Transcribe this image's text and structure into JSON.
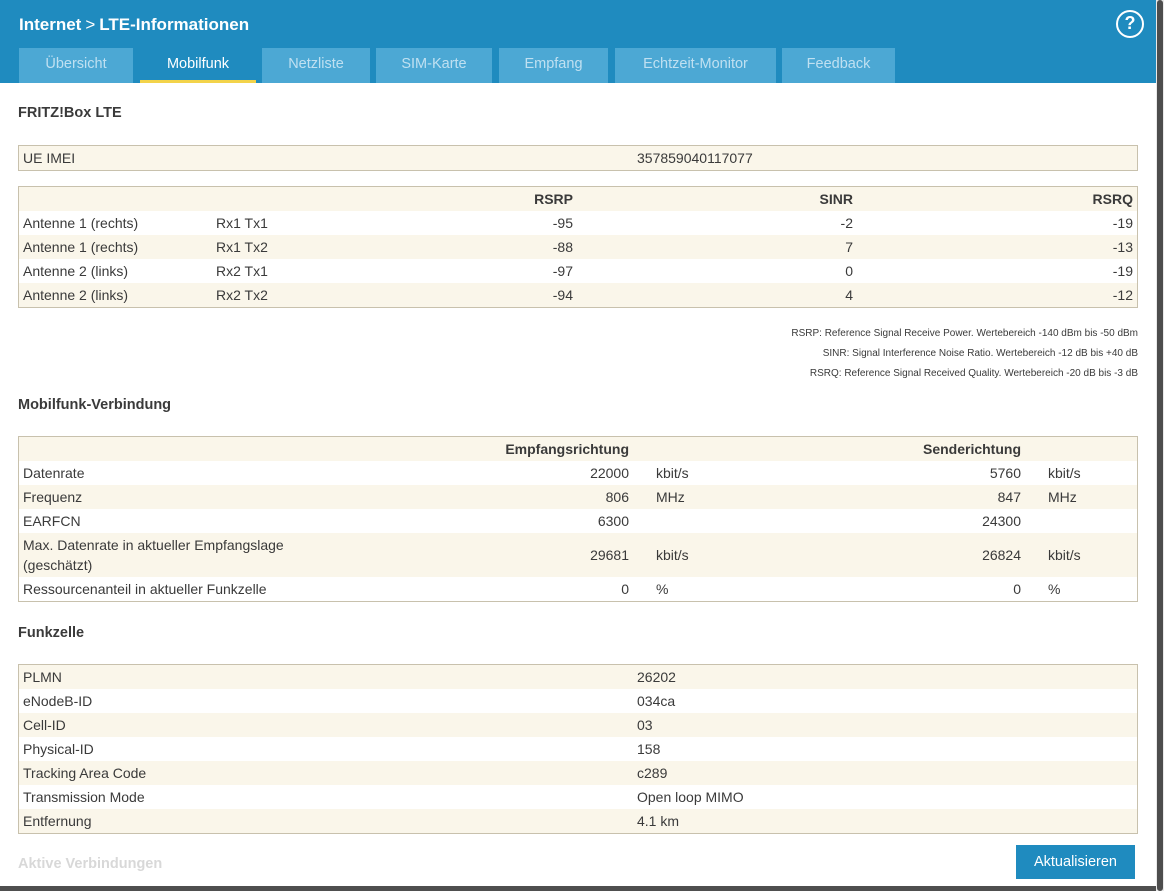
{
  "header": {
    "breadcrumb_parent": "Internet",
    "breadcrumb_separator": ">",
    "breadcrumb_current": "LTE-Informationen",
    "help_label": "?"
  },
  "tabs": [
    {
      "label": "Übersicht"
    },
    {
      "label": "Mobilfunk"
    },
    {
      "label": "Netzliste"
    },
    {
      "label": "SIM-Karte"
    },
    {
      "label": "Empfang"
    },
    {
      "label": "Echtzeit-Monitor"
    },
    {
      "label": "Feedback"
    }
  ],
  "section1": {
    "title": "FRITZ!Box LTE",
    "imei_label": "UE IMEI",
    "imei_value": "357859040117077"
  },
  "signal_table": {
    "headers": {
      "rsrp": "RSRP",
      "sinr": "SINR",
      "rsrq": "RSRQ"
    },
    "rows": [
      {
        "antenna": "Antenne 1 (rechts)",
        "path": "Rx1 Tx1",
        "rsrp": "-95",
        "sinr": "-2",
        "rsrq": "-19"
      },
      {
        "antenna": "Antenne 1 (rechts)",
        "path": "Rx1 Tx2",
        "rsrp": "-88",
        "sinr": "7",
        "rsrq": "-13"
      },
      {
        "antenna": "Antenne 2 (links)",
        "path": "Rx2 Tx1",
        "rsrp": "-97",
        "sinr": "0",
        "rsrq": "-19"
      },
      {
        "antenna": "Antenne 2 (links)",
        "path": "Rx2 Tx2",
        "rsrp": "-94",
        "sinr": "4",
        "rsrq": "-12"
      }
    ],
    "notes": [
      "RSRP: Reference Signal Receive Power. Wertebereich -140 dBm bis -50 dBm",
      "SINR: Signal Interference Noise Ratio. Wertebereich -12 dB bis +40 dB",
      "RSRQ: Reference Signal Received Quality. Wertebereich -20 dB bis -3 dB"
    ]
  },
  "connection": {
    "title": "Mobilfunk-Verbindung",
    "col_rx": "Empfangsrichtung",
    "col_tx": "Senderichtung",
    "rows": [
      {
        "label": "Datenrate",
        "rx": "22000",
        "rx_unit": "kbit/s",
        "tx": "5760",
        "tx_unit": "kbit/s"
      },
      {
        "label": "Frequenz",
        "rx": "806",
        "rx_unit": "MHz",
        "tx": "847",
        "tx_unit": "MHz"
      },
      {
        "label": "EARFCN",
        "rx": "6300",
        "rx_unit": "",
        "tx": "24300",
        "tx_unit": ""
      },
      {
        "label_line1": "Max. Datenrate in aktueller Empfangslage",
        "label_line2": "(geschätzt)",
        "rx": "29681",
        "rx_unit": "kbit/s",
        "tx": "26824",
        "tx_unit": "kbit/s"
      },
      {
        "label": "Ressourcenanteil in aktueller Funkzelle",
        "rx": "0",
        "rx_unit": "%",
        "tx": "0",
        "tx_unit": "%"
      }
    ]
  },
  "cell": {
    "title": "Funkzelle",
    "rows": [
      {
        "label": "PLMN",
        "value": "26202"
      },
      {
        "label": "eNodeB-ID",
        "value": "034ca"
      },
      {
        "label": "Cell-ID",
        "value": "03"
      },
      {
        "label": "Physical-ID",
        "value": "158"
      },
      {
        "label": "Tracking Area Code",
        "value": "c289"
      },
      {
        "label": "Transmission Mode",
        "value": "Open loop MIMO"
      },
      {
        "label": "Entfernung",
        "value": "4.1 km"
      }
    ]
  },
  "footer": {
    "section_label": "Aktive Verbindungen",
    "refresh_button": "Aktualisieren"
  },
  "colors": {
    "header_blue": "#1f8bbf",
    "tab_inactive": "#4ca8d4",
    "tab_active_underline": "#f3d34a",
    "row_tint": "#faf6ea",
    "table_border": "#c8c1ad"
  }
}
